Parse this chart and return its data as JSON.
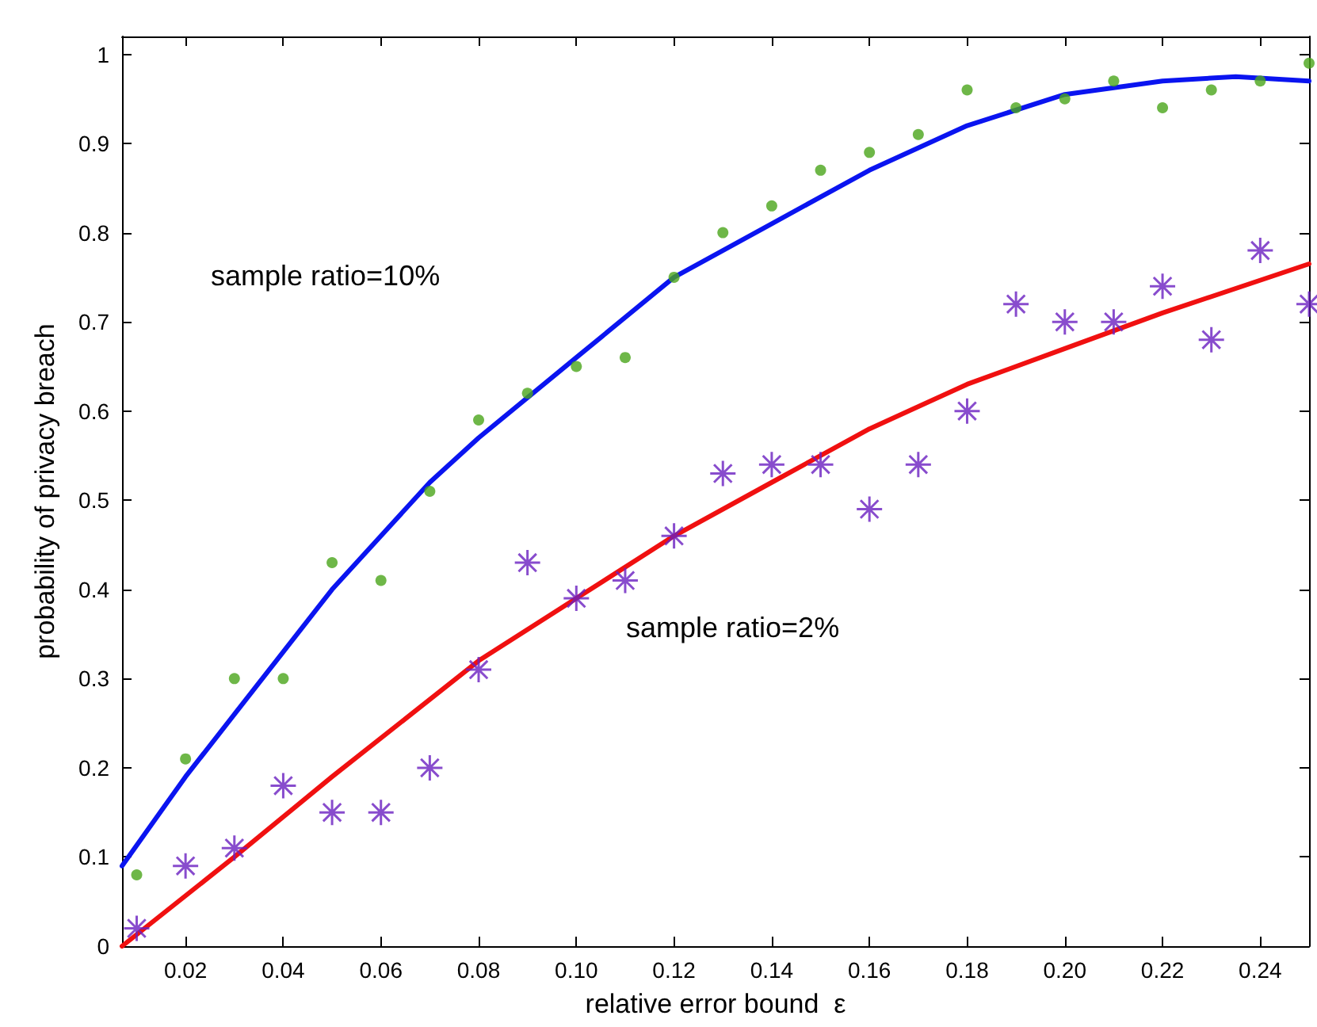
{
  "chart_data": {
    "type": "scatter",
    "xlabel": "relative error bound  ε",
    "ylabel": "probability of privacy breach",
    "xlim": [
      0.007,
      0.25
    ],
    "xticks": [
      {
        "value": 0.02,
        "label": "0.02"
      },
      {
        "value": 0.04,
        "label": "0.04"
      },
      {
        "value": 0.06,
        "label": "0.06"
      },
      {
        "value": 0.08,
        "label": "0.08"
      },
      {
        "value": 0.1,
        "label": "0.10"
      },
      {
        "value": 0.12,
        "label": "0.12"
      },
      {
        "value": 0.14,
        "label": "0.14"
      },
      {
        "value": 0.16,
        "label": "0.16"
      },
      {
        "value": 0.18,
        "label": "0.18"
      },
      {
        "value": 0.2,
        "label": "0.20"
      },
      {
        "value": 0.22,
        "label": "0.22"
      },
      {
        "value": 0.24,
        "label": "0.24"
      }
    ],
    "ylim": [
      0,
      1.02
    ],
    "yticks": [
      0,
      0.1,
      0.2,
      0.3,
      0.4,
      0.5,
      0.6,
      0.7,
      0.8,
      0.9,
      1
    ],
    "grid": false,
    "annotations": [
      "sample ratio=10%",
      "sample ratio=2%"
    ],
    "series": [
      {
        "marker": "circle",
        "color": "#4aa51a",
        "x": [
          0.01,
          0.02,
          0.03,
          0.04,
          0.05,
          0.06,
          0.07,
          0.08,
          0.09,
          0.1,
          0.11,
          0.12,
          0.13,
          0.14,
          0.15,
          0.16,
          0.17,
          0.18,
          0.19,
          0.2,
          0.21,
          0.22,
          0.23,
          0.24,
          0.25
        ],
        "values": [
          0.08,
          0.21,
          0.3,
          0.3,
          0.43,
          0.41,
          0.51,
          0.59,
          0.62,
          0.65,
          0.66,
          0.75,
          0.8,
          0.83,
          0.87,
          0.89,
          0.91,
          0.96,
          0.94,
          0.95,
          0.97,
          0.94,
          0.96,
          0.97,
          0.99
        ]
      },
      {
        "marker": "cross",
        "color": "#6a1fc0",
        "x": [
          0.01,
          0.02,
          0.03,
          0.04,
          0.05,
          0.06,
          0.07,
          0.08,
          0.09,
          0.1,
          0.11,
          0.12,
          0.13,
          0.14,
          0.15,
          0.16,
          0.17,
          0.18,
          0.19,
          0.2,
          0.21,
          0.22,
          0.23,
          0.24,
          0.25
        ],
        "values": [
          0.02,
          0.09,
          0.11,
          0.18,
          0.15,
          0.15,
          0.2,
          0.31,
          0.43,
          0.39,
          0.41,
          0.46,
          0.53,
          0.54,
          0.54,
          0.49,
          0.54,
          0.6,
          0.72,
          0.7,
          0.7,
          0.74,
          0.68,
          0.78,
          0.72
        ]
      },
      {
        "type": "line",
        "marker": "none",
        "line_style": "solid",
        "color": "#0a14f0",
        "x": [
          0.007,
          0.02,
          0.03,
          0.04,
          0.05,
          0.06,
          0.07,
          0.08,
          0.1,
          0.12,
          0.14,
          0.16,
          0.18,
          0.2,
          0.22,
          0.235,
          0.25
        ],
        "values": [
          0.09,
          0.19,
          0.26,
          0.33,
          0.4,
          0.46,
          0.52,
          0.57,
          0.66,
          0.75,
          0.81,
          0.87,
          0.92,
          0.955,
          0.97,
          0.975,
          0.97
        ]
      },
      {
        "type": "line",
        "marker": "none",
        "line_style": "solid",
        "color": "#f01010",
        "x": [
          0.007,
          0.03,
          0.05,
          0.08,
          0.1,
          0.12,
          0.14,
          0.16,
          0.18,
          0.2,
          0.22,
          0.25
        ],
        "values": [
          0.0,
          0.1,
          0.19,
          0.32,
          0.39,
          0.46,
          0.52,
          0.58,
          0.63,
          0.67,
          0.71,
          0.765
        ]
      }
    ]
  }
}
